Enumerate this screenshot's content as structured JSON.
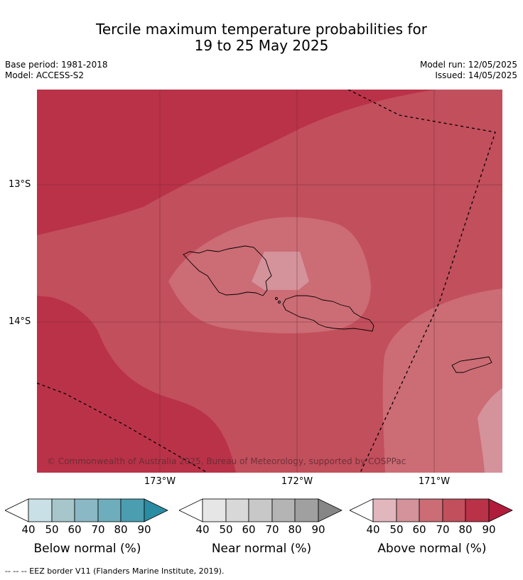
{
  "title_line1": "Tercile maximum temperature probabilities for",
  "title_line2": "19 to 25 May 2025",
  "meta": {
    "base_period": "Base period: 1981-2018",
    "model": "Model: ACCESS-S2",
    "model_run": "Model run: 12/05/2025",
    "issued": "Issued: 14/05/2025"
  },
  "map": {
    "lat_labels": [
      "13°S",
      "14°S"
    ],
    "lon_labels": [
      "173°W",
      "172°W",
      "171°W"
    ],
    "copyright": "© Commonwealth of Australia 2025, Bureau of Meteorology, supported by COSPPac"
  },
  "legends": [
    {
      "title": "Below normal (%)",
      "ticks": [
        "40",
        "50",
        "60",
        "70",
        "80",
        "90"
      ],
      "colors": [
        "#ffffff",
        "#c8e0e6",
        "#a6c6cc",
        "#8ab8c4",
        "#6eaebc",
        "#4a9eb0",
        "#2a8ca2"
      ]
    },
    {
      "title": "Near normal (%)",
      "ticks": [
        "40",
        "50",
        "60",
        "70",
        "80",
        "90"
      ],
      "colors": [
        "#ffffff",
        "#e6e6e6",
        "#d8d8d8",
        "#c8c8c8",
        "#b4b4b4",
        "#a0a0a0",
        "#868686"
      ]
    },
    {
      "title": "Above normal (%)",
      "ticks": [
        "40",
        "50",
        "60",
        "70",
        "80",
        "90"
      ],
      "colors": [
        "#ffffff",
        "#e2b6bd",
        "#d4929b",
        "#cc6c75",
        "#c24f5c",
        "#ba3248",
        "#b01c3c"
      ]
    }
  ],
  "eez_note": "--  --  -- EEZ border V11 (Flanders Marine Institute, 2019)."
}
